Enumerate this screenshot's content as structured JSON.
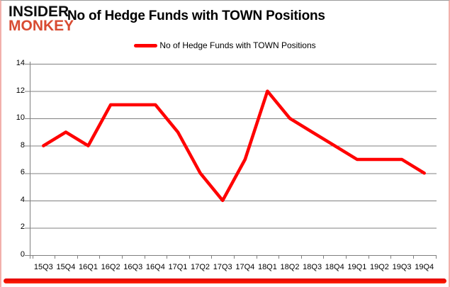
{
  "header": {
    "logo_line1": "INSIDER",
    "logo_line2": "MONKEY",
    "title": "No of Hedge Funds with TOWN Positions"
  },
  "legend": {
    "label": "No of Hedge Funds with TOWN Positions"
  },
  "chart_data": {
    "type": "line",
    "title": "No of Hedge Funds with TOWN Positions",
    "categories": [
      "15Q3",
      "15Q4",
      "16Q1",
      "16Q2",
      "16Q3",
      "16Q4",
      "17Q1",
      "17Q2",
      "17Q3",
      "17Q4",
      "18Q1",
      "18Q2",
      "18Q3",
      "18Q4",
      "19Q1",
      "19Q2",
      "19Q3",
      "19Q4"
    ],
    "series": [
      {
        "name": "No of Hedge Funds with TOWN Positions",
        "color": "#ff0000",
        "values": [
          8,
          9,
          8,
          11,
          11,
          11,
          9,
          6,
          4,
          7,
          12,
          10,
          9,
          8,
          7,
          7,
          7,
          6
        ]
      }
    ],
    "xlabel": "",
    "ylabel": "",
    "ylim": [
      0,
      14
    ],
    "y_ticks": [
      0,
      2,
      4,
      6,
      8,
      10,
      12,
      14
    ],
    "grid": "horizontal",
    "legend_position": "top"
  },
  "colors": {
    "line": "#ff0000",
    "grid": "#808080",
    "logo_red": "#d84b32",
    "bottom_bar": "#ee0000",
    "side_border": "#f2b0ab"
  }
}
